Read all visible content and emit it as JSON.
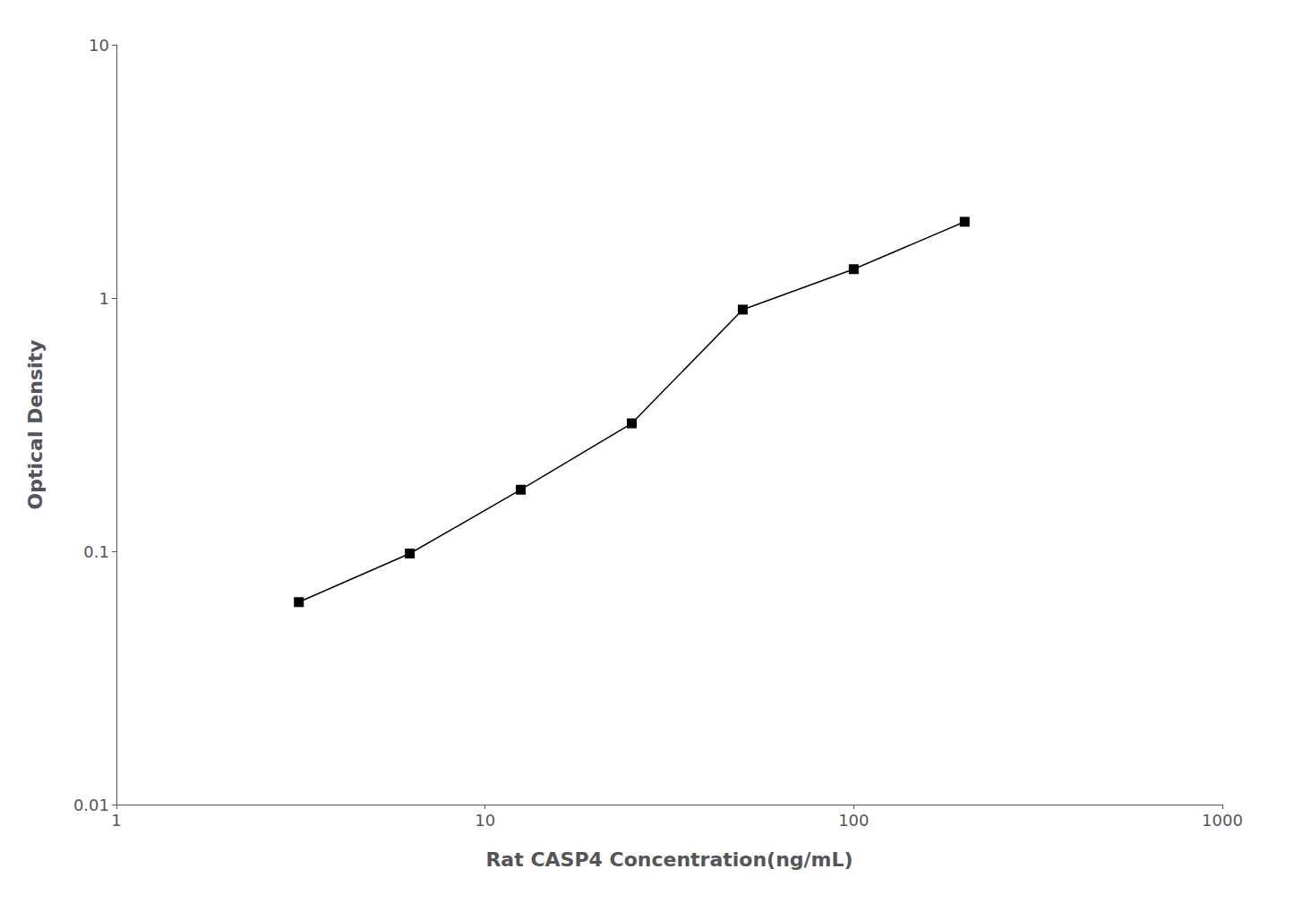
{
  "chart_data": {
    "type": "line",
    "x": [
      3.125,
      6.25,
      12.5,
      25,
      50,
      100,
      200
    ],
    "values": [
      0.063,
      0.098,
      0.175,
      0.32,
      0.9,
      1.3,
      2.0
    ],
    "xlabel": "Rat CASP4 Concentration(ng/mL)",
    "ylabel": "Optical Density",
    "xlim": [
      1,
      1000
    ],
    "ylim": [
      0.01,
      10
    ],
    "xticks": [
      1,
      10,
      100,
      1000
    ],
    "yticks": [
      0.01,
      0.1,
      1,
      10
    ],
    "log": true,
    "grid": false,
    "color": "#000000",
    "marker": "square"
  }
}
